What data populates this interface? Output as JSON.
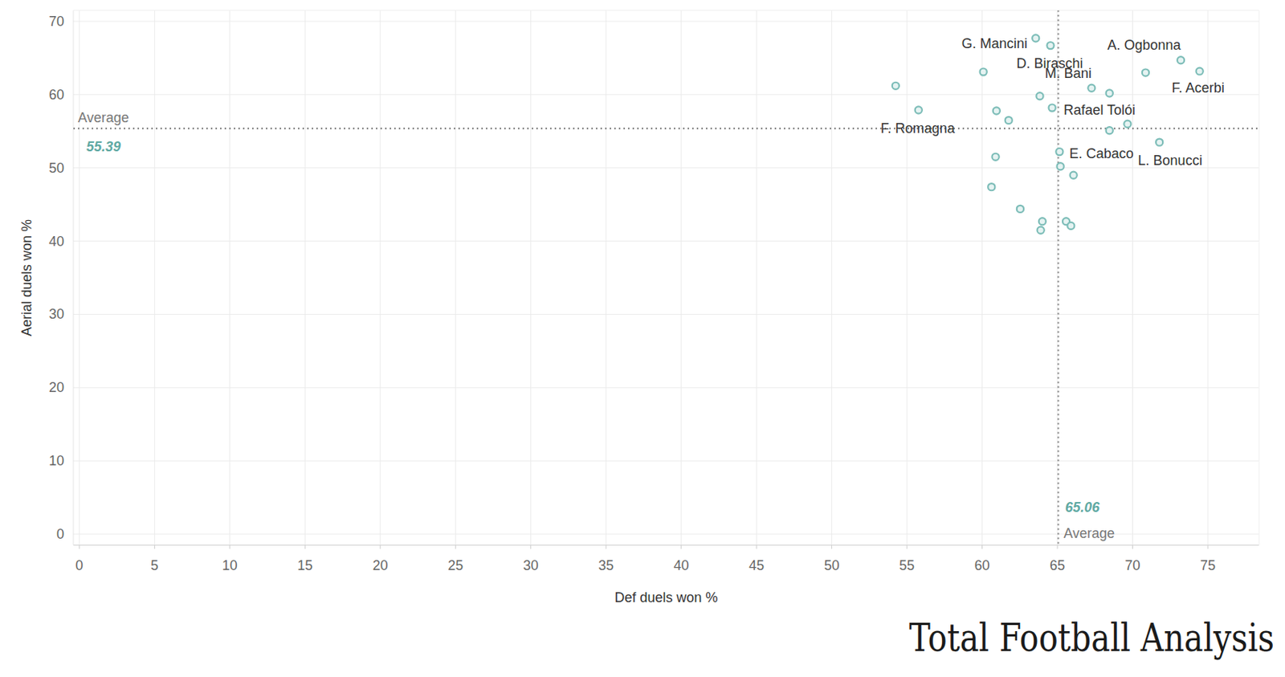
{
  "chart_data": {
    "type": "scatter",
    "x_label": "Def duels won %",
    "y_label": "Aerial duels won %",
    "x": [
      63.56,
      64.54,
      73.2,
      74.45,
      70.86,
      60.08,
      54.25,
      67.27,
      68.46,
      63.83,
      55.77,
      60.95,
      64.65,
      61.76,
      69.66,
      68.46,
      71.78,
      65.14,
      60.89,
      65.2,
      66.07,
      60.62,
      62.53,
      64.0,
      63.89,
      65.58,
      65.9
    ],
    "values": [
      67.7,
      66.7,
      64.7,
      63.2,
      63.0,
      63.1,
      61.2,
      60.9,
      60.2,
      59.8,
      57.9,
      57.8,
      58.2,
      56.5,
      56.0,
      55.1,
      53.5,
      52.2,
      51.5,
      50.2,
      49.0,
      47.4,
      44.4,
      42.7,
      41.5,
      42.7,
      42.1
    ],
    "labels": [
      "G. Mancini",
      "D. Biraschi",
      "A. Ogbonna",
      "F. Acerbi",
      null,
      null,
      null,
      "M. Bani",
      null,
      null,
      "F. Romagna",
      null,
      "Rafael Tolói",
      null,
      null,
      null,
      "L. Bonucci",
      "E. Cabaco",
      null,
      null,
      null,
      null,
      null,
      null,
      null,
      null,
      null
    ],
    "color": "#7dbdb8",
    "marker": "circle",
    "xlim": [
      -0.4,
      78.4
    ],
    "ylim": [
      -1.5,
      71.5
    ],
    "xticks": [
      0,
      5,
      10,
      15,
      20,
      25,
      30,
      35,
      40,
      45,
      50,
      55,
      60,
      65,
      70,
      75
    ],
    "yticks": [
      0,
      10,
      20,
      30,
      40,
      50,
      60,
      70
    ],
    "grid": true,
    "reference_lines": [
      {
        "axis": "y",
        "value": 55.39,
        "label": "Average"
      },
      {
        "axis": "x",
        "value": 65.06,
        "label": "Average"
      }
    ],
    "source": "Total Football Analysis"
  }
}
